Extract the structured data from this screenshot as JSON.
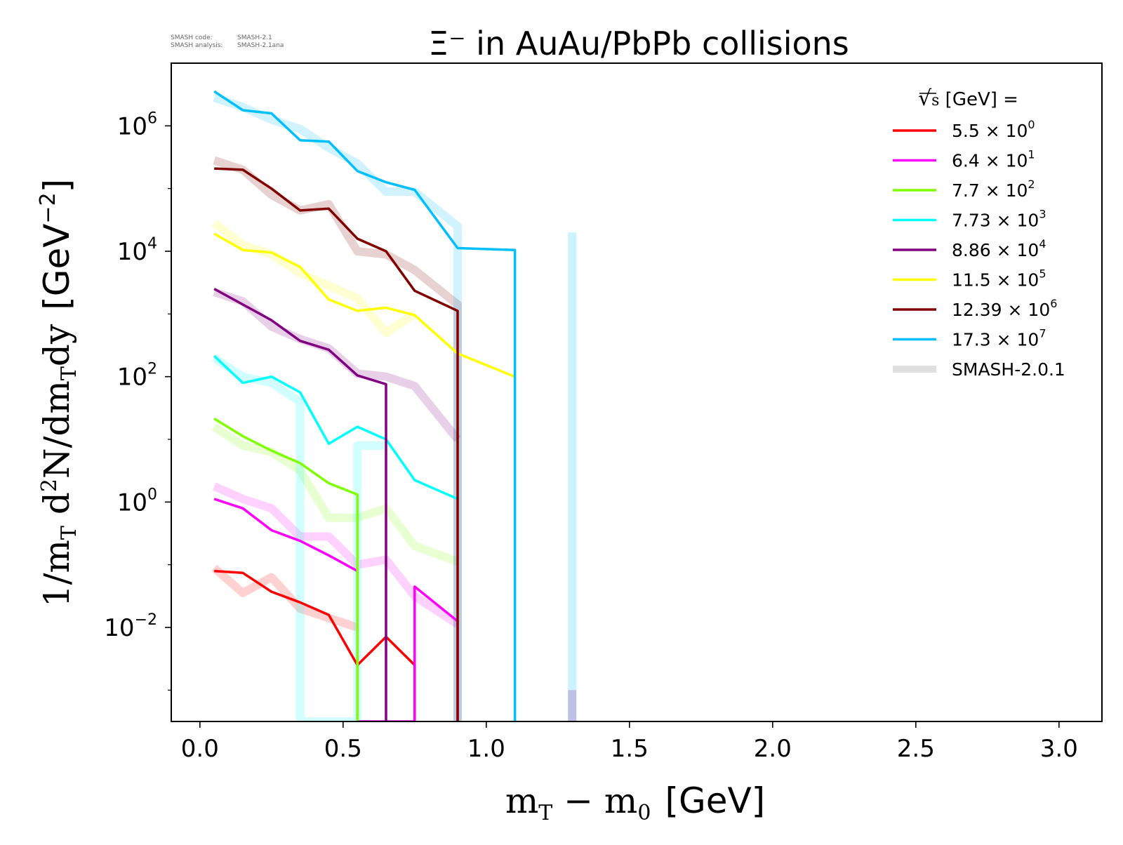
{
  "meta": {
    "code_label": "SMASH code:",
    "code_value": "SMASH-2.1",
    "analysis_label": "SMASH analysis:",
    "analysis_value": "SMASH-2.1ana"
  },
  "chart_data": {
    "type": "line",
    "title": "Ξ⁻ in AuAu/PbPb collisions",
    "xlabel_math": "m",
    "xlabel_sub_T": "T",
    "xlabel_minus": " − m",
    "xlabel_sub_0": "0",
    "xlabel_unit": "[GeV]",
    "ylabel_math": "1/m",
    "ylabel_sub_T": "T",
    "ylabel_mid": " d",
    "ylabel_sup_2": "2",
    "ylabel_mid2": "N/dm",
    "ylabel_sub_T2": "T",
    "ylabel_dy": "dy",
    "ylabel_unit": "[GeV",
    "ylabel_unit_exp": "−2",
    "ylabel_unit_close": "]",
    "xlim": [
      -0.1,
      3.15
    ],
    "ylim_log10": [
      -3.5,
      7.0
    ],
    "x_ticks": [
      {
        "value": 0.0,
        "label": "0.0"
      },
      {
        "value": 0.5,
        "label": "0.5"
      },
      {
        "value": 1.0,
        "label": "1.0"
      },
      {
        "value": 1.5,
        "label": "1.5"
      },
      {
        "value": 2.0,
        "label": "2.0"
      },
      {
        "value": 2.5,
        "label": "2.5"
      },
      {
        "value": 3.0,
        "label": "3.0"
      }
    ],
    "y_ticks": [
      {
        "exp": 6,
        "base": "10",
        "sup": "6"
      },
      {
        "exp": 4,
        "base": "10",
        "sup": "4"
      },
      {
        "exp": 2,
        "base": "10",
        "sup": "2"
      },
      {
        "exp": 0,
        "base": "10",
        "sup": "0"
      },
      {
        "exp": -2,
        "base": "10",
        "sup": "−2"
      }
    ],
    "legend": {
      "title_sqrt": "√",
      "title_s": "s",
      "title_rest": " [GeV] =",
      "position": "top-right"
    },
    "series": [
      {
        "name": "5.5 × 10⁰",
        "label_mant": "5.5",
        "label_exp": "0",
        "color": "#ff0000",
        "x": [
          0.05,
          0.15,
          0.25,
          0.35,
          0.45,
          0.55,
          0.65,
          0.75,
          0.75
        ],
        "y": [
          -1.1,
          -1.13,
          -1.43,
          -1.6,
          -1.8,
          -2.6,
          -2.15,
          -2.6,
          -3.6
        ],
        "ref": [
          [
            0.05,
            -1.05
          ],
          [
            0.15,
            -1.45
          ],
          [
            0.25,
            -1.2
          ],
          [
            0.35,
            -1.7
          ],
          [
            0.45,
            -1.85
          ],
          [
            0.55,
            -2.0
          ]
        ]
      },
      {
        "name": "6.4 × 10¹",
        "label_mant": "6.4",
        "label_exp": "1",
        "color": "#ff00ff",
        "x": [
          0.05,
          0.15,
          0.25,
          0.35,
          0.45,
          0.55,
          0.55,
          0.55,
          0.75,
          0.75,
          0.9,
          0.9
        ],
        "y": [
          0.05,
          -0.1,
          -0.45,
          -0.62,
          -0.85,
          -1.1,
          -3.6,
          -3.6,
          -3.6,
          -1.35,
          -1.9,
          -3.6
        ],
        "ref": [
          [
            0.05,
            0.25
          ],
          [
            0.15,
            0.05
          ],
          [
            0.25,
            -0.1
          ],
          [
            0.35,
            -0.55
          ],
          [
            0.45,
            -0.55
          ],
          [
            0.55,
            -1.0
          ],
          [
            0.65,
            -0.92
          ],
          [
            0.75,
            -1.5
          ],
          [
            0.9,
            -1.95
          ]
        ]
      },
      {
        "name": "7.7 × 10²",
        "label_mant": "7.7",
        "label_exp": "2",
        "color": "#7fff00",
        "x": [
          0.05,
          0.15,
          0.25,
          0.35,
          0.45,
          0.55,
          0.55
        ],
        "y": [
          1.33,
          1.05,
          0.82,
          0.62,
          0.3,
          0.12,
          -3.6
        ],
        "ref": [
          [
            0.05,
            1.2
          ],
          [
            0.15,
            0.9
          ],
          [
            0.25,
            0.8
          ],
          [
            0.35,
            0.5
          ],
          [
            0.45,
            -0.25
          ],
          [
            0.55,
            -0.25
          ],
          [
            0.65,
            -0.1
          ],
          [
            0.75,
            -0.7
          ],
          [
            0.9,
            -0.95
          ]
        ]
      },
      {
        "name": "7.73 × 10³",
        "label_mant": "7.73",
        "label_exp": "3",
        "color": "#00ffff",
        "x": [
          0.05,
          0.15,
          0.25,
          0.35,
          0.45,
          0.55,
          0.65,
          0.75,
          0.9
        ],
        "y": [
          2.33,
          1.9,
          2.0,
          1.75,
          0.93,
          1.2,
          1.0,
          0.35,
          0.05
        ],
        "ref": [
          [
            0.05,
            2.3
          ],
          [
            0.15,
            2.0
          ],
          [
            0.25,
            1.9
          ],
          [
            0.35,
            1.6
          ],
          [
            0.35,
            -3.6
          ],
          [
            0.55,
            -3.6
          ],
          [
            0.55,
            0.9
          ],
          [
            0.65,
            0.9
          ]
        ]
      },
      {
        "name": "8.86 × 10⁴",
        "label_mant": "8.86",
        "label_exp": "4",
        "color": "#800080",
        "x": [
          0.05,
          0.15,
          0.25,
          0.35,
          0.45,
          0.55,
          0.65,
          0.65
        ],
        "y": [
          3.4,
          3.15,
          2.9,
          2.57,
          2.43,
          2.02,
          1.88,
          -3.6
        ],
        "ref": [
          [
            0.05,
            3.35
          ],
          [
            0.15,
            3.2
          ],
          [
            0.25,
            2.8
          ],
          [
            0.35,
            2.6
          ],
          [
            0.45,
            2.45
          ],
          [
            0.55,
            2.05
          ],
          [
            0.65,
            2.0
          ],
          [
            0.75,
            1.85
          ],
          [
            0.9,
            1.0
          ]
        ]
      },
      {
        "name": "11.5 × 10⁵",
        "label_mant": "11.5",
        "label_exp": "5",
        "color": "#ffff00",
        "x": [
          0.05,
          0.15,
          0.25,
          0.35,
          0.45,
          0.55,
          0.65,
          0.75,
          0.9,
          1.1
        ],
        "y": [
          4.28,
          4.02,
          3.98,
          3.75,
          3.23,
          3.05,
          3.1,
          2.98,
          2.37,
          2.0
        ],
        "ref": [
          [
            0.05,
            4.45
          ],
          [
            0.15,
            4.1
          ],
          [
            0.25,
            3.95
          ],
          [
            0.35,
            3.65
          ],
          [
            0.45,
            3.45
          ],
          [
            0.55,
            3.25
          ],
          [
            0.65,
            2.7
          ],
          [
            0.75,
            3.0
          ]
        ]
      },
      {
        "name": "12.39 × 10⁶",
        "label_mant": "12.39",
        "label_exp": "6",
        "color": "#800000",
        "x": [
          0.05,
          0.15,
          0.25,
          0.35,
          0.45,
          0.55,
          0.65,
          0.75,
          0.9,
          0.9
        ],
        "y": [
          5.32,
          5.3,
          5.0,
          4.65,
          4.68,
          4.2,
          4.0,
          3.37,
          3.05,
          -3.6
        ],
        "ref": [
          [
            0.05,
            5.45
          ],
          [
            0.15,
            5.3
          ],
          [
            0.25,
            4.9
          ],
          [
            0.35,
            4.65
          ],
          [
            0.45,
            4.75
          ],
          [
            0.55,
            4.0
          ],
          [
            0.65,
            3.95
          ],
          [
            0.75,
            3.7
          ],
          [
            0.9,
            3.15
          ],
          [
            0.9,
            -3.6
          ]
        ]
      },
      {
        "name": "17.3 × 10⁷",
        "label_mant": "17.3",
        "label_exp": "7",
        "color": "#00bfff",
        "x": [
          0.05,
          0.15,
          0.25,
          0.35,
          0.45,
          0.55,
          0.65,
          0.75,
          0.9,
          1.1,
          1.1
        ],
        "y": [
          6.55,
          6.25,
          6.2,
          5.77,
          5.75,
          5.28,
          5.1,
          4.98,
          4.05,
          4.02,
          -3.6
        ],
        "ref": [
          [
            0.05,
            6.45
          ],
          [
            0.15,
            6.3
          ],
          [
            0.25,
            6.1
          ],
          [
            0.35,
            5.95
          ],
          [
            0.45,
            5.65
          ],
          [
            0.55,
            5.4
          ],
          [
            0.65,
            4.95
          ],
          [
            0.75,
            4.95
          ],
          [
            0.9,
            4.4
          ],
          [
            0.9,
            -3.6
          ]
        ]
      },
      {
        "name": "SMASH-2.0.1",
        "label_mant": "SMASH-2.0.1",
        "label_exp": "",
        "color": "#dddddd",
        "is_ref": true,
        "x": [],
        "y": []
      }
    ],
    "extra_ref": [
      {
        "color": "#00bfff",
        "points": [
          [
            1.3,
            -3.6
          ],
          [
            1.3,
            4.3
          ]
        ]
      },
      {
        "color": "#800080",
        "points": [
          [
            1.3,
            -3.6
          ],
          [
            1.3,
            -3.0
          ]
        ]
      }
    ]
  }
}
